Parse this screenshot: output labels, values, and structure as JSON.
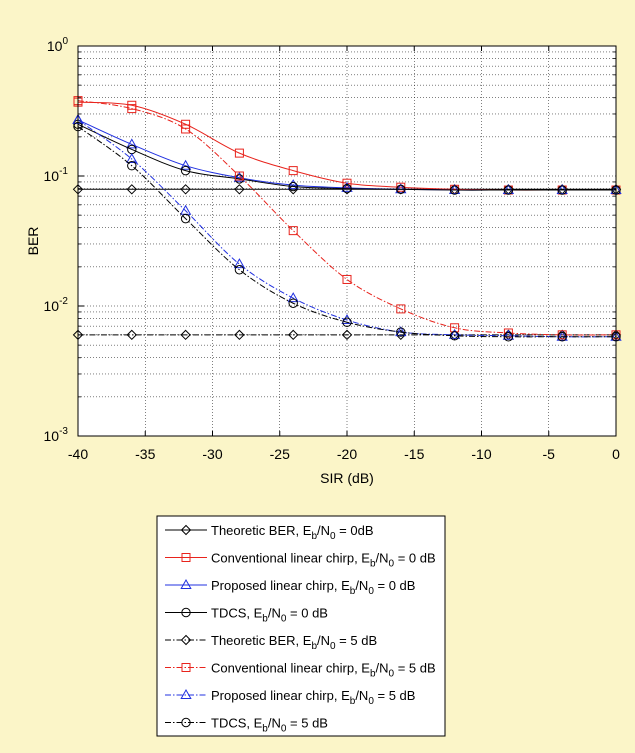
{
  "chart_data": {
    "type": "line",
    "xlabel": "SIR (dB)",
    "ylabel": "BER",
    "xlim": [
      -40,
      0
    ],
    "ylim": [
      0.001,
      1
    ],
    "yscale": "log",
    "grid": true,
    "legend_position": "below",
    "x_ticks": [
      "-40",
      "-35",
      "-30",
      "-25",
      "-20",
      "-15",
      "-10",
      "-5",
      "0"
    ],
    "y_ticks": [
      {
        "base": "10",
        "exp": "0"
      },
      {
        "base": "10",
        "exp": "-1"
      },
      {
        "base": "10",
        "exp": "-2"
      },
      {
        "base": "10",
        "exp": "-3"
      }
    ],
    "x": [
      -40,
      -36,
      -32,
      -28,
      -24,
      -20,
      -16,
      -12,
      -8,
      -4,
      0
    ],
    "series": [
      {
        "name": "Theoretic BER, E_b/N_0 = 0dB",
        "legend": {
          "pre": "Theoretic BER, E",
          "sub": "b",
          "mid": "/N",
          "sub2": "0",
          "post": " = 0dB"
        },
        "color": "#000000",
        "dash": "solid",
        "marker": "diamond",
        "values": [
          0.079,
          0.079,
          0.079,
          0.079,
          0.079,
          0.079,
          0.079,
          0.079,
          0.079,
          0.079,
          0.079
        ]
      },
      {
        "name": "Conventional linear chirp, E_b/N_0 = 0 dB",
        "legend": {
          "pre": "Conventional linear chirp, E",
          "sub": "b",
          "mid": "/N",
          "sub2": "0",
          "post": " = 0 dB"
        },
        "color": "#e8231c",
        "dash": "solid",
        "marker": "square",
        "values": [
          0.37,
          0.35,
          0.25,
          0.15,
          0.11,
          0.088,
          0.082,
          0.079,
          0.078,
          0.078,
          0.078
        ]
      },
      {
        "name": "Proposed linear chirp, E_b/N_0 = 0 dB",
        "legend": {
          "pre": "Proposed linear chirp, E",
          "sub": "b",
          "mid": "/N",
          "sub2": "0",
          "post": " = 0 dB"
        },
        "color": "#2030e0",
        "dash": "solid",
        "marker": "triangle",
        "values": [
          0.27,
          0.175,
          0.12,
          0.097,
          0.085,
          0.081,
          0.079,
          0.078,
          0.078,
          0.078,
          0.078
        ]
      },
      {
        "name": "TDCS, E_b/N_0 = 0 dB",
        "legend": {
          "pre": "TDCS, E",
          "sub": "b",
          "mid": "/N",
          "sub2": "0",
          "post": " = 0 dB"
        },
        "color": "#000000",
        "dash": "solid",
        "marker": "circle",
        "values": [
          0.25,
          0.16,
          0.11,
          0.095,
          0.083,
          0.08,
          0.079,
          0.078,
          0.078,
          0.078,
          0.078
        ]
      },
      {
        "name": "Theoretic BER, E_b/N_0 = 5 dB",
        "legend": {
          "pre": "Theoretic BER, E",
          "sub": "b",
          "mid": "/N",
          "sub2": "0",
          "post": " = 5 dB"
        },
        "color": "#000000",
        "dash": "dashdot",
        "marker": "diamond",
        "values": [
          0.006,
          0.006,
          0.006,
          0.006,
          0.006,
          0.006,
          0.006,
          0.006,
          0.006,
          0.006,
          0.006
        ]
      },
      {
        "name": "Conventional linear chirp, E_b/N_0 = 5 dB",
        "legend": {
          "pre": "Conventional linear chirp, E",
          "sub": "b",
          "mid": "/N",
          "sub2": "0",
          "post": " = 5 dB"
        },
        "color": "#e8231c",
        "dash": "dashdot",
        "marker": "square",
        "values": [
          0.38,
          0.33,
          0.23,
          0.1,
          0.038,
          0.016,
          0.0095,
          0.0068,
          0.0062,
          0.006,
          0.006
        ]
      },
      {
        "name": "Proposed linear chirp, E_b/N_0 = 5 dB",
        "legend": {
          "pre": "Proposed linear chirp, E",
          "sub": "b",
          "mid": "/N",
          "sub2": "0",
          "post": " = 5 dB"
        },
        "color": "#2030e0",
        "dash": "dashdot",
        "marker": "triangle",
        "values": [
          0.27,
          0.135,
          0.054,
          0.021,
          0.0115,
          0.0078,
          0.0063,
          0.006,
          0.0059,
          0.0058,
          0.0058
        ]
      },
      {
        "name": "TDCS, E_b/N_0 = 5 dB",
        "legend": {
          "pre": "TDCS, E",
          "sub": "b",
          "mid": "/N",
          "sub2": "0",
          "post": " = 5 dB"
        },
        "color": "#000000",
        "dash": "dashdot",
        "marker": "circle",
        "values": [
          0.24,
          0.12,
          0.047,
          0.019,
          0.0105,
          0.0075,
          0.0063,
          0.0059,
          0.0058,
          0.0058,
          0.0058
        ]
      }
    ]
  }
}
